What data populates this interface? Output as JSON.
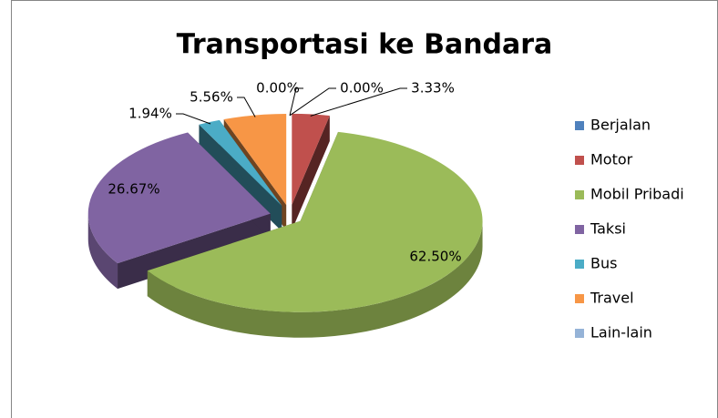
{
  "chart_data": {
    "type": "pie",
    "title": "Transportasi ke Bandara",
    "categories": [
      "Berjalan",
      "Motor",
      "Mobil Pribadi",
      "Taksi",
      "Bus",
      "Travel",
      "Lain-lain"
    ],
    "values": [
      0,
      3.33,
      62.5,
      26.67,
      1.94,
      5.56,
      0
    ],
    "value_labels": [
      "0.00%",
      "3.33%",
      "62.50%",
      "26.67%",
      "1.94%",
      "5.56%",
      "0.00%"
    ],
    "colors": [
      "#4f81bd",
      "#c0504d",
      "#9bbb59",
      "#8064a2",
      "#4bacc6",
      "#f79646",
      "#95b3d7"
    ],
    "legend": "right"
  }
}
